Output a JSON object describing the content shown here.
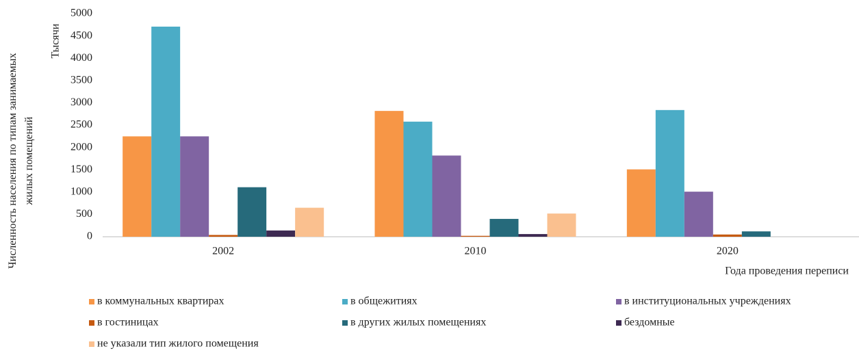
{
  "chart_data": {
    "type": "bar",
    "y_label": "Численность населения по типам занимаемых жилых помещений",
    "y_unit_label": "Тысячи",
    "x_label": "Года проведения переписи",
    "categories": [
      "2002",
      "2010",
      "2020"
    ],
    "series": [
      {
        "name": "в коммунальных квартирах",
        "color": "#f79646",
        "values": [
          2250,
          2820,
          1510
        ]
      },
      {
        "name": "в общежитиях",
        "color": "#4bacc6",
        "values": [
          4710,
          2580,
          2840
        ]
      },
      {
        "name": "в институциональных учреждениях",
        "color": "#8064a2",
        "values": [
          2250,
          1820,
          1010
        ]
      },
      {
        "name": "в гостиницах",
        "color": "#c55a11",
        "values": [
          40,
          20,
          50
        ]
      },
      {
        "name": "в других жилых помещениях",
        "color": "#266a7b",
        "values": [
          1110,
          400,
          120
        ]
      },
      {
        "name": "бездомные",
        "color": "#3e2a52",
        "values": [
          140,
          60,
          0
        ]
      },
      {
        "name": "не указали тип жилого помещения",
        "color": "#fac08f",
        "values": [
          650,
          520,
          0
        ]
      }
    ],
    "ylim": [
      0,
      5000
    ],
    "yticks": [
      0,
      500,
      1000,
      1500,
      2000,
      2500,
      3000,
      3500,
      4000,
      4500,
      5000
    ],
    "grid": false
  }
}
